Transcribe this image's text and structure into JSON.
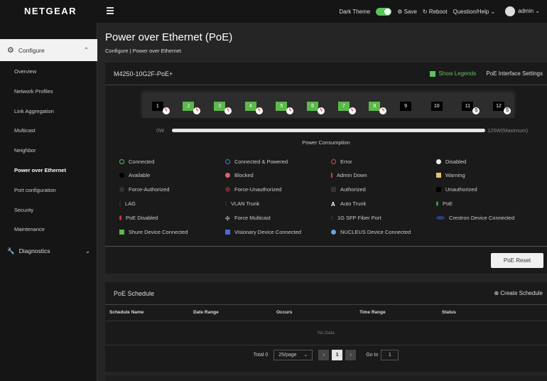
{
  "header": {
    "logo": "NETGEAR",
    "dark_theme": "Dark Theme",
    "dark_theme_on": true,
    "save": "Save",
    "reboot": "Reboot",
    "help": "Question/Help",
    "user": "admin"
  },
  "sidebar": {
    "configure": "Configure",
    "items": [
      "Overview",
      "Network Profiles",
      "Link Aggregation",
      "Multicast",
      "Neighbor",
      "Power over Ethernet",
      "Port configuration",
      "Security",
      "Maintenance"
    ],
    "active": "Power over Ethernet",
    "diagnostics": "Diagnostics"
  },
  "page": {
    "title": "Power over Ethernet (PoE)",
    "breadcrumb": "Configure | Power over Ethernet"
  },
  "device": {
    "model": "M4250-10G2F-PoE+",
    "show_legends": "Show Legends",
    "show_legends_checked": true,
    "interface_settings": "PoE Interface Settings",
    "ports": [
      {
        "n": "1",
        "state": "available",
        "badge": "poe-disabled"
      },
      {
        "n": "2",
        "state": "connected",
        "badge": "poe-disabled"
      },
      {
        "n": "3",
        "state": "connected",
        "badge": "poe-disabled"
      },
      {
        "n": "4",
        "state": "connected",
        "badge": "poe-disabled"
      },
      {
        "n": "5",
        "state": "connected",
        "badge": "poe-disabled"
      },
      {
        "n": "6",
        "state": "connected",
        "badge": "poe-disabled"
      },
      {
        "n": "7",
        "state": "connected",
        "badge": "poe-disabled"
      },
      {
        "n": "8",
        "state": "connected",
        "badge": "poe-disabled"
      },
      {
        "n": "9",
        "state": "available",
        "badge": ""
      },
      {
        "n": "10",
        "state": "available",
        "badge": ""
      },
      {
        "n": "11",
        "state": "available",
        "badge": "sfp"
      },
      {
        "n": "12",
        "state": "available",
        "badge": "sfp"
      }
    ],
    "power_min": "0W",
    "power_max": "125W(Maximum)",
    "power_label": "Power Consumption",
    "power_used_percent": 0,
    "legend": [
      [
        "Connected",
        "Connected & Powered",
        "Error",
        "Disabled"
      ],
      [
        "Available",
        "Blocked",
        "Admin Down",
        "Warning"
      ],
      [
        "Force-Authorized",
        "Force-Unauthorized",
        "Authorized",
        "Unauthorized"
      ],
      [
        "LAG",
        "VLAN Trunk",
        "Auto Trunk",
        "PoE"
      ],
      [
        "PoE Disabled",
        "Force Multicast",
        "1G SFP Fiber Port",
        "Crestron Device Connected"
      ],
      [
        "Shure Device Connected",
        "Visionary Device Connected",
        "NUCLEUS Device Connected"
      ]
    ],
    "reset": "PoE Reset"
  },
  "schedule": {
    "title": "PoE Schedule",
    "create": "Create Schedule",
    "columns": [
      "Schedule Name",
      "Date Range",
      "Occurs",
      "Time Range",
      "Status"
    ],
    "empty": "No Data",
    "total": "Total 0",
    "page_size": "25/page",
    "page": "1",
    "goto_label": "Go to",
    "goto_value": "1"
  },
  "colors": {
    "accent": "#5cc35c",
    "port_connected": "#5cb84a"
  }
}
